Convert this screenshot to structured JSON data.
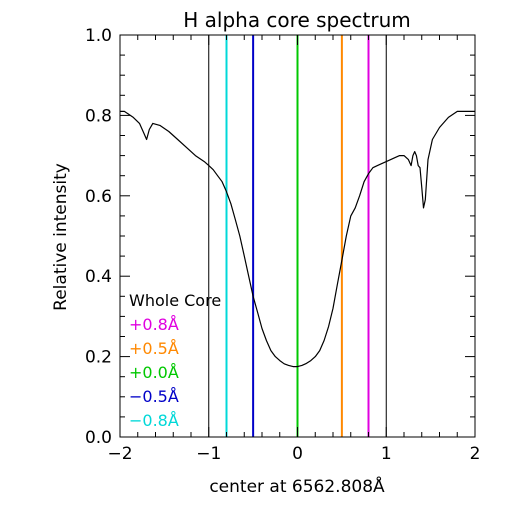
{
  "chart_data": {
    "type": "line",
    "title": "H alpha core spectrum",
    "xlabel": "center at 6562.808Å",
    "ylabel": "Relative intensity",
    "xlim": [
      -2,
      2
    ],
    "ylim": [
      0,
      1
    ],
    "x_ticks": [
      -2,
      -1,
      0,
      1,
      2
    ],
    "x_tick_labels": [
      "−2",
      "−1",
      "0",
      "1",
      "2"
    ],
    "y_ticks": [
      0.0,
      0.2,
      0.4,
      0.6,
      0.8,
      1.0
    ],
    "y_tick_labels": [
      "0.0",
      "0.2",
      "0.4",
      "0.6",
      "0.8",
      "1.0"
    ],
    "series": [
      {
        "color": "#000000",
        "x": [
          -2.0,
          -1.95,
          -1.85,
          -1.78,
          -1.73,
          -1.7,
          -1.67,
          -1.63,
          -1.55,
          -1.45,
          -1.35,
          -1.25,
          -1.15,
          -1.05,
          -1.0,
          -0.95,
          -0.9,
          -0.85,
          -0.8,
          -0.75,
          -0.7,
          -0.65,
          -0.6,
          -0.55,
          -0.5,
          -0.45,
          -0.4,
          -0.35,
          -0.3,
          -0.25,
          -0.2,
          -0.15,
          -0.1,
          -0.05,
          0.0,
          0.05,
          0.1,
          0.15,
          0.2,
          0.25,
          0.3,
          0.35,
          0.4,
          0.45,
          0.5,
          0.55,
          0.6,
          0.65,
          0.7,
          0.75,
          0.8,
          0.85,
          0.9,
          0.95,
          1.0,
          1.05,
          1.1,
          1.15,
          1.2,
          1.25,
          1.28,
          1.3,
          1.32,
          1.34,
          1.36,
          1.38,
          1.4,
          1.42,
          1.44,
          1.47,
          1.52,
          1.6,
          1.7,
          1.8,
          1.9,
          2.0
        ],
        "y": [
          0.81,
          0.81,
          0.795,
          0.78,
          0.755,
          0.74,
          0.765,
          0.78,
          0.775,
          0.76,
          0.74,
          0.72,
          0.7,
          0.685,
          0.675,
          0.665,
          0.65,
          0.635,
          0.61,
          0.58,
          0.54,
          0.5,
          0.45,
          0.4,
          0.35,
          0.31,
          0.27,
          0.24,
          0.215,
          0.2,
          0.19,
          0.182,
          0.178,
          0.175,
          0.175,
          0.178,
          0.183,
          0.19,
          0.2,
          0.215,
          0.24,
          0.275,
          0.32,
          0.38,
          0.44,
          0.5,
          0.55,
          0.57,
          0.6,
          0.635,
          0.655,
          0.67,
          0.675,
          0.68,
          0.685,
          0.69,
          0.695,
          0.7,
          0.7,
          0.69,
          0.675,
          0.7,
          0.71,
          0.7,
          0.675,
          0.67,
          0.62,
          0.57,
          0.59,
          0.69,
          0.74,
          0.77,
          0.795,
          0.81,
          0.81,
          0.81
        ]
      }
    ],
    "vertical_lines": [
      {
        "x": -1.0,
        "color": "#000000"
      },
      {
        "x": 1.0,
        "color": "#000000"
      },
      {
        "x": -0.8,
        "color": "#00d8d8"
      },
      {
        "x": -0.5,
        "color": "#0000c8"
      },
      {
        "x": 0.0,
        "color": "#00c800"
      },
      {
        "x": 0.5,
        "color": "#ff8800"
      },
      {
        "x": 0.8,
        "color": "#e000e0"
      }
    ],
    "legend": {
      "position": "bottom-left",
      "entries": [
        {
          "label": "Whole Core",
          "color": "#000000"
        },
        {
          "label": "+0.8Å",
          "color": "#e000e0"
        },
        {
          "label": "+0.5Å",
          "color": "#ff8800"
        },
        {
          "label": "+0.0Å",
          "color": "#00c800"
        },
        {
          "label": "−0.5Å",
          "color": "#0000c8"
        },
        {
          "label": "−0.8Å",
          "color": "#00d8d8"
        }
      ]
    }
  }
}
